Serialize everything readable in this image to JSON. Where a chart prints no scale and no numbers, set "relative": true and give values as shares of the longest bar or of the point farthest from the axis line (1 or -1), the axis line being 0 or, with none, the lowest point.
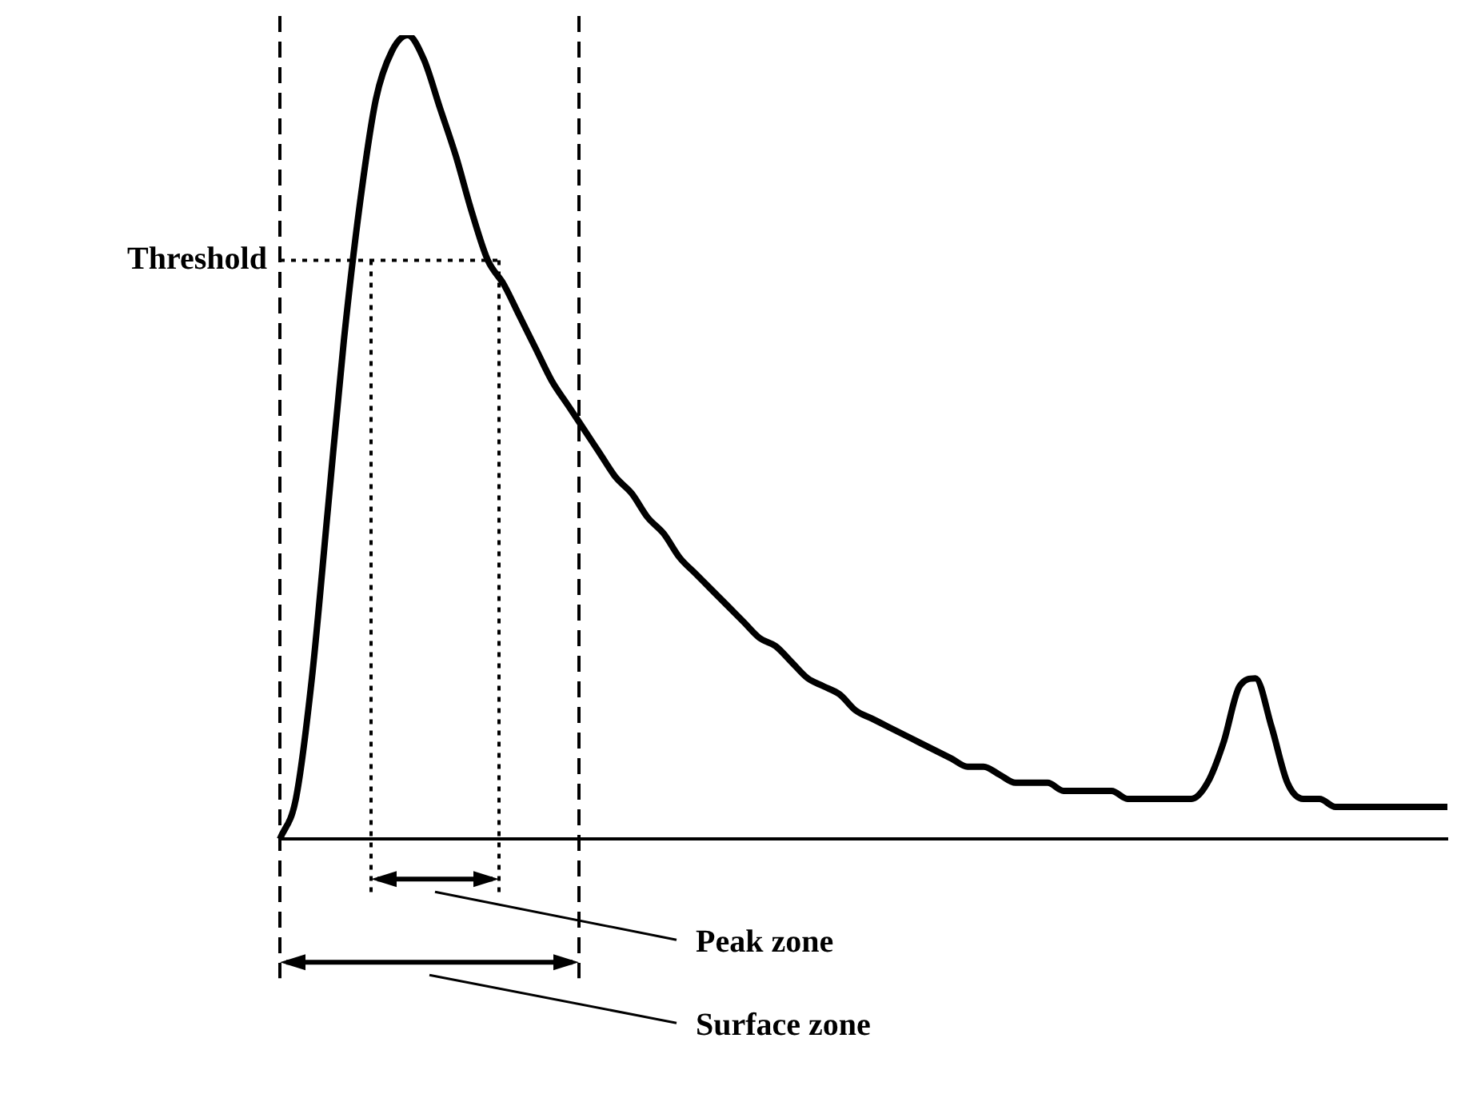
{
  "chart_data": {
    "type": "line",
    "relative": true,
    "categories": [
      null,
      null,
      null,
      null,
      null,
      null,
      null,
      null,
      null,
      null,
      null,
      null,
      null,
      null,
      null,
      null,
      null,
      null,
      null,
      null,
      null,
      null,
      null,
      null,
      null,
      null,
      null,
      null,
      null,
      null,
      null,
      null,
      null,
      null,
      null,
      null,
      null,
      null,
      null,
      null,
      null,
      null,
      null,
      null,
      null,
      null,
      null,
      null,
      null,
      null,
      null,
      null,
      null,
      null,
      null,
      null,
      null,
      null,
      null,
      null,
      null,
      null,
      null,
      null,
      null,
      null,
      null,
      null,
      null,
      null,
      null,
      null,
      null,
      null
    ],
    "series": [
      {
        "color": "#000000",
        "values": [
          0,
          0.05,
          0.2,
          0.41,
          0.62,
          0.79,
          0.92,
          0.98,
          1,
          0.97,
          0.91,
          0.85,
          0.78,
          0.72,
          0.69,
          0.65,
          0.61,
          0.57,
          0.54,
          0.51,
          0.48,
          0.45,
          0.43,
          0.4,
          0.38,
          0.35,
          0.33,
          0.31,
          0.29,
          0.27,
          0.25,
          0.24,
          0.22,
          0.2,
          0.19,
          0.18,
          0.16,
          0.15,
          0.14,
          0.13,
          0.12,
          0.11,
          0.1,
          0.09,
          0.09,
          0.08,
          0.07,
          0.07,
          0.07,
          0.06,
          0.06,
          0.06,
          0.06,
          0.05,
          0.05,
          0.05,
          0.05,
          0.05,
          0.07,
          0.12,
          0.19,
          0.2,
          0.14,
          0.07,
          0.05,
          0.05,
          0.04,
          0.04,
          0.04,
          0.04,
          0.04,
          0.04,
          0.04,
          0.04
        ]
      }
    ],
    "ref_lines": [
      {
        "axis": "y",
        "value": 0.72,
        "label": "Threshold",
        "line_style": "dotted",
        "color": "#000000"
      }
    ],
    "annotations": [
      "Peak zone",
      "Surface zone"
    ],
    "grid": false,
    "legend": false,
    "marker": "none",
    "line_style": "solid"
  }
}
